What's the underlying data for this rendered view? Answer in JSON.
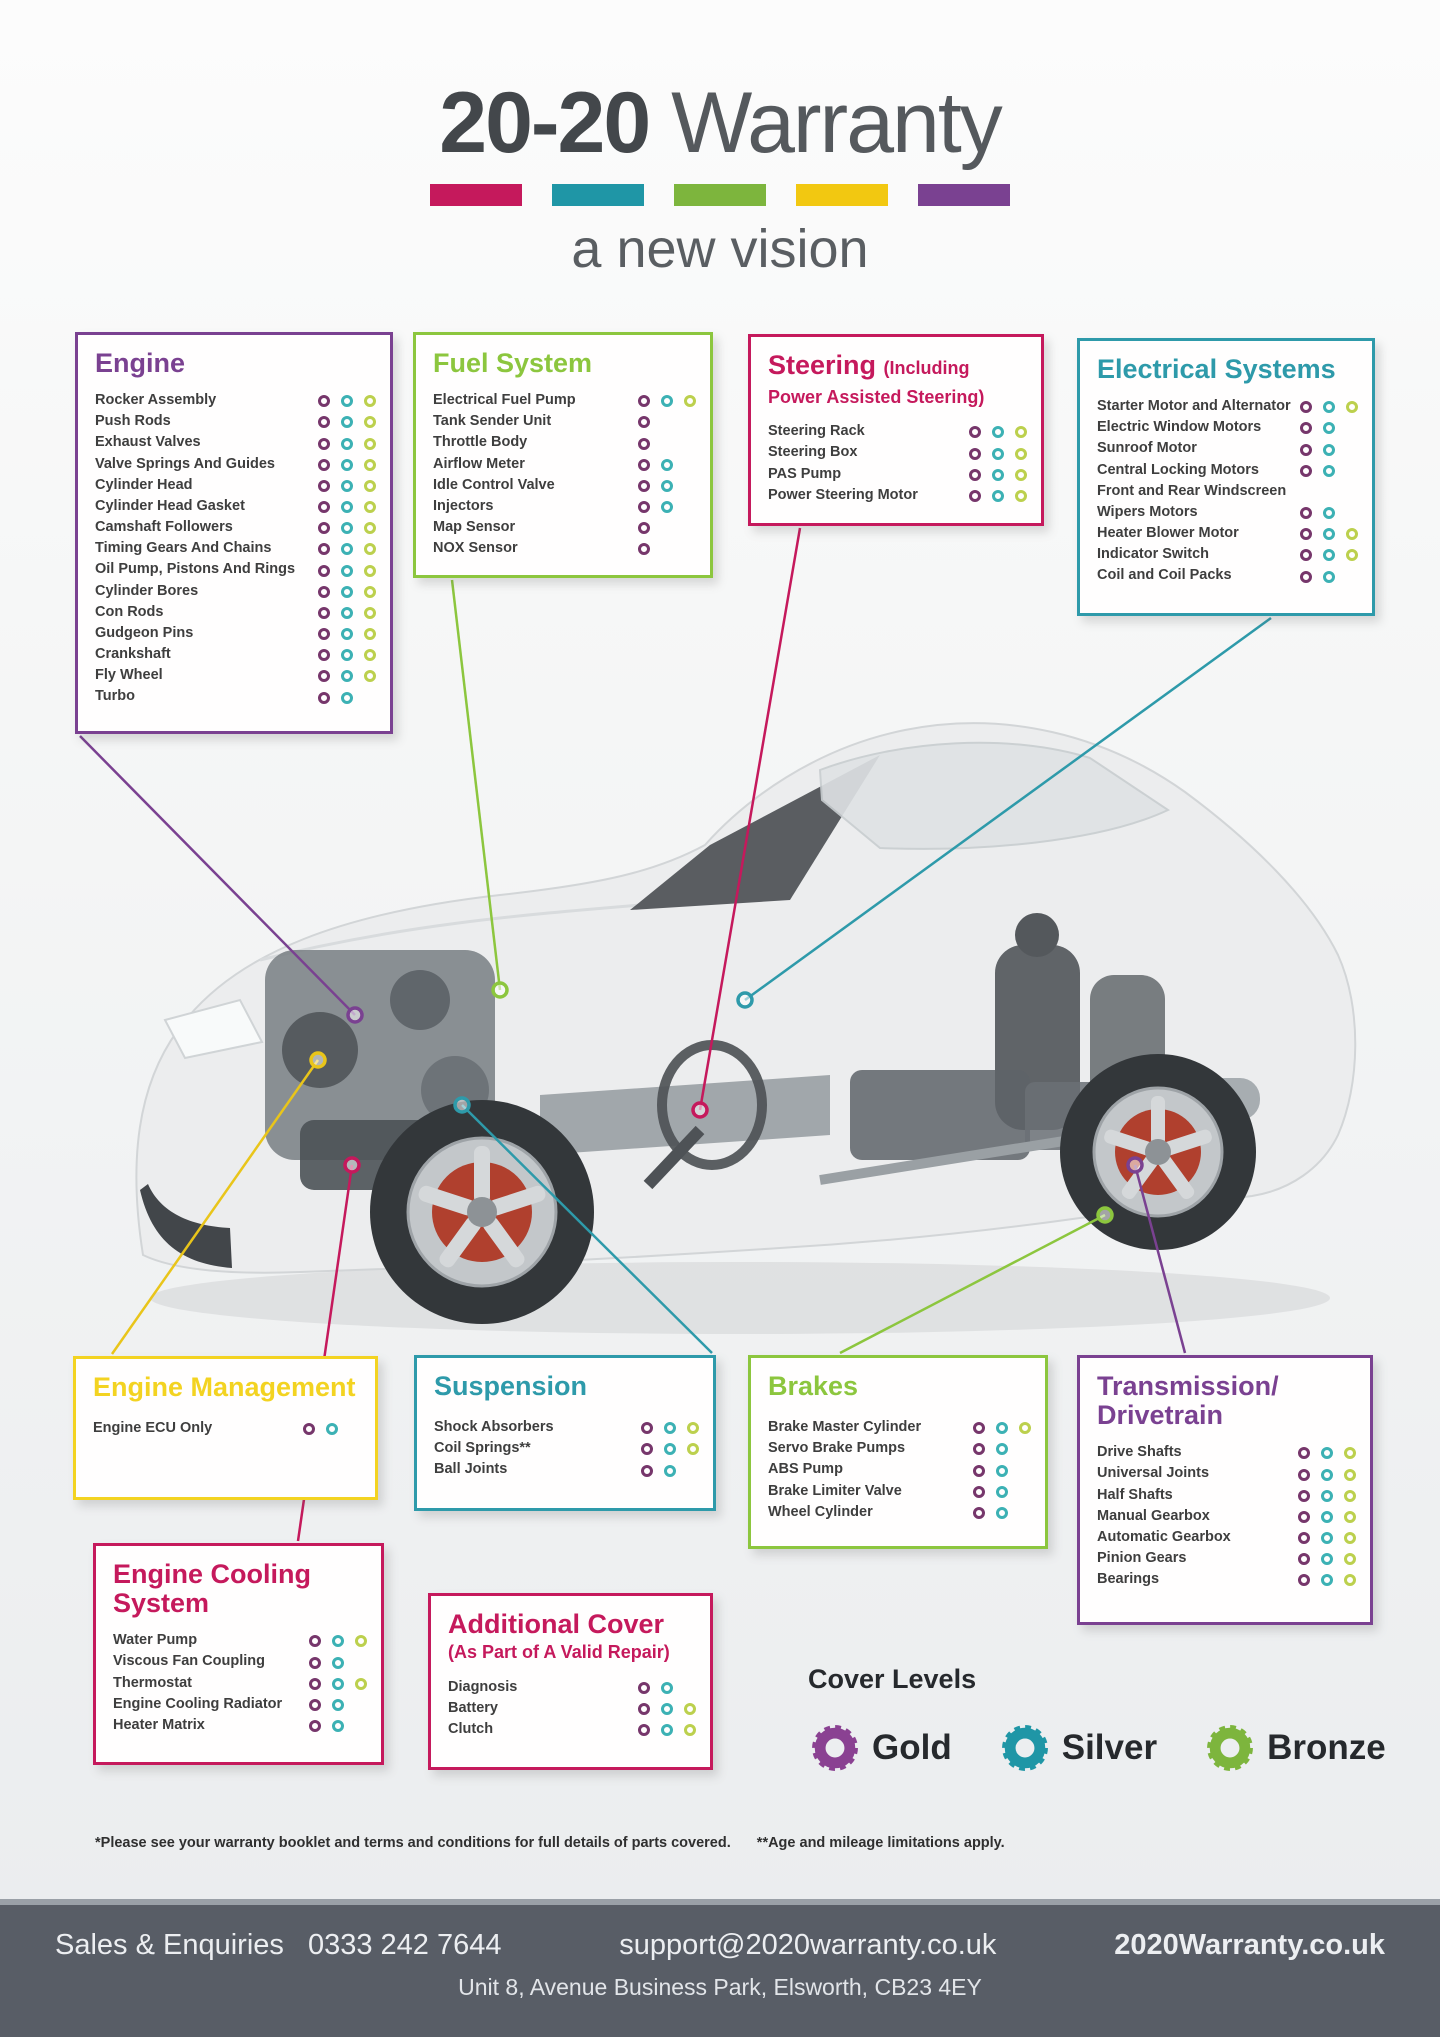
{
  "header": {
    "title_bold": "20-20",
    "title_light": " Warranty",
    "subtitle": "a new vision",
    "bar_colors": [
      "#c5195c",
      "#1f96a6",
      "#7db53d",
      "#f2c811",
      "#7a4191"
    ]
  },
  "dot_colors": {
    "gold": "#76366b",
    "silver": "#3cb1b4",
    "bronze": "#bcd04d"
  },
  "boxes": [
    {
      "id": "engine",
      "title": "Engine",
      "color": "#7a4191",
      "items": [
        {
          "label": "Rocker Assembly",
          "levels": [
            "gold",
            "silver",
            "bronze"
          ]
        },
        {
          "label": "Push Rods",
          "levels": [
            "gold",
            "silver",
            "bronze"
          ]
        },
        {
          "label": "Exhaust Valves",
          "levels": [
            "gold",
            "silver",
            "bronze"
          ]
        },
        {
          "label": "Valve Springs And Guides",
          "levels": [
            "gold",
            "silver",
            "bronze"
          ]
        },
        {
          "label": "Cylinder Head",
          "levels": [
            "gold",
            "silver",
            "bronze"
          ]
        },
        {
          "label": "Cylinder Head Gasket",
          "levels": [
            "gold",
            "silver",
            "bronze"
          ]
        },
        {
          "label": "Camshaft Followers",
          "levels": [
            "gold",
            "silver",
            "bronze"
          ]
        },
        {
          "label": "Timing Gears And Chains",
          "levels": [
            "gold",
            "silver",
            "bronze"
          ]
        },
        {
          "label": "Oil Pump, Pistons And Rings",
          "levels": [
            "gold",
            "silver",
            "bronze"
          ]
        },
        {
          "label": "Cylinder Bores",
          "levels": [
            "gold",
            "silver",
            "bronze"
          ]
        },
        {
          "label": "Con Rods",
          "levels": [
            "gold",
            "silver",
            "bronze"
          ]
        },
        {
          "label": "Gudgeon Pins",
          "levels": [
            "gold",
            "silver",
            "bronze"
          ]
        },
        {
          "label": "Crankshaft",
          "levels": [
            "gold",
            "silver",
            "bronze"
          ]
        },
        {
          "label": "Fly Wheel",
          "levels": [
            "gold",
            "silver",
            "bronze"
          ]
        },
        {
          "label": "Turbo",
          "levels": [
            "gold",
            "silver"
          ]
        }
      ]
    },
    {
      "id": "fuel-system",
      "title": "Fuel System",
      "color": "#8cc63e",
      "items": [
        {
          "label": "Electrical Fuel Pump",
          "levels": [
            "gold",
            "silver",
            "bronze"
          ]
        },
        {
          "label": "Tank Sender Unit",
          "levels": [
            "gold"
          ]
        },
        {
          "label": "Throttle Body",
          "levels": [
            "gold"
          ]
        },
        {
          "label": "Airflow Meter",
          "levels": [
            "gold",
            "silver"
          ]
        },
        {
          "label": "Idle Control Valve",
          "levels": [
            "gold",
            "silver"
          ]
        },
        {
          "label": "Injectors",
          "levels": [
            "gold",
            "silver"
          ]
        },
        {
          "label": "Map Sensor",
          "levels": [
            "gold"
          ]
        },
        {
          "label": "NOX Sensor",
          "levels": [
            "gold"
          ]
        }
      ]
    },
    {
      "id": "steering",
      "title": "Steering",
      "note1": "(Including",
      "note2": "Power Assisted Steering)",
      "color": "#c5195c",
      "items": [
        {
          "label": "Steering Rack",
          "levels": [
            "gold",
            "silver",
            "bronze"
          ]
        },
        {
          "label": "Steering Box",
          "levels": [
            "gold",
            "silver",
            "bronze"
          ]
        },
        {
          "label": "PAS Pump",
          "levels": [
            "gold",
            "silver",
            "bronze"
          ]
        },
        {
          "label": "Power Steering Motor",
          "levels": [
            "gold",
            "silver",
            "bronze"
          ]
        }
      ]
    },
    {
      "id": "electrical-systems",
      "title": "Electrical Systems",
      "color": "#2e9aaa",
      "items": [
        {
          "label": "Starter Motor and Alternator",
          "levels": [
            "gold",
            "silver",
            "bronze"
          ]
        },
        {
          "label": "Electric Window Motors",
          "levels": [
            "gold",
            "silver"
          ]
        },
        {
          "label": "Sunroof Motor",
          "levels": [
            "gold",
            "silver"
          ]
        },
        {
          "label": "Central Locking Motors",
          "levels": [
            "gold",
            "silver"
          ]
        },
        {
          "label": "Front and Rear Windscreen Wipers Motors",
          "levels": [
            "gold",
            "silver"
          ]
        },
        {
          "label": "Heater Blower Motor",
          "levels": [
            "gold",
            "silver",
            "bronze"
          ]
        },
        {
          "label": "Indicator Switch",
          "levels": [
            "gold",
            "silver",
            "bronze"
          ]
        },
        {
          "label": "Coil and Coil Packs",
          "levels": [
            "gold",
            "silver"
          ]
        }
      ]
    },
    {
      "id": "engine-management",
      "title": "Engine Management",
      "color": "#f3d321",
      "items": [
        {
          "label": "Engine ECU Only",
          "levels": [
            "gold",
            "silver"
          ]
        }
      ]
    },
    {
      "id": "suspension",
      "title": "Suspension",
      "color": "#2e9aaa",
      "items": [
        {
          "label": "Shock Absorbers",
          "levels": [
            "gold",
            "silver",
            "bronze"
          ]
        },
        {
          "label": "Coil Springs**",
          "levels": [
            "gold",
            "silver",
            "bronze"
          ]
        },
        {
          "label": "Ball Joints",
          "levels": [
            "gold",
            "silver"
          ]
        }
      ]
    },
    {
      "id": "brakes",
      "title": "Brakes",
      "color": "#8cc63e",
      "items": [
        {
          "label": "Brake Master Cylinder",
          "levels": [
            "gold",
            "silver",
            "bronze"
          ]
        },
        {
          "label": "Servo Brake Pumps",
          "levels": [
            "gold",
            "silver"
          ]
        },
        {
          "label": "ABS Pump",
          "levels": [
            "gold",
            "silver"
          ]
        },
        {
          "label": "Brake Limiter Valve",
          "levels": [
            "gold",
            "silver"
          ]
        },
        {
          "label": "Wheel Cylinder",
          "levels": [
            "gold",
            "silver"
          ]
        }
      ]
    },
    {
      "id": "transmission-drivetrain",
      "title": "Transmission/ Drivetrain",
      "color": "#7a4191",
      "items": [
        {
          "label": "Drive Shafts",
          "levels": [
            "gold",
            "silver",
            "bronze"
          ]
        },
        {
          "label": "Universal Joints",
          "levels": [
            "gold",
            "silver",
            "bronze"
          ]
        },
        {
          "label": "Half Shafts",
          "levels": [
            "gold",
            "silver",
            "bronze"
          ]
        },
        {
          "label": "Manual Gearbox",
          "levels": [
            "gold",
            "silver",
            "bronze"
          ]
        },
        {
          "label": "Automatic Gearbox",
          "levels": [
            "gold",
            "silver",
            "bronze"
          ]
        },
        {
          "label": "Pinion Gears",
          "levels": [
            "gold",
            "silver",
            "bronze"
          ]
        },
        {
          "label": "Bearings",
          "levels": [
            "gold",
            "silver",
            "bronze"
          ]
        }
      ]
    },
    {
      "id": "engine-cooling-system",
      "title": "Engine Cooling System",
      "color": "#c5195c",
      "items": [
        {
          "label": "Water Pump",
          "levels": [
            "gold",
            "silver",
            "bronze"
          ]
        },
        {
          "label": "Viscous Fan Coupling",
          "levels": [
            "gold",
            "silver"
          ]
        },
        {
          "label": "Thermostat",
          "levels": [
            "gold",
            "silver",
            "bronze"
          ]
        },
        {
          "label": "Engine Cooling Radiator",
          "levels": [
            "gold",
            "silver"
          ]
        },
        {
          "label": "Heater Matrix",
          "levels": [
            "gold",
            "silver"
          ]
        }
      ]
    },
    {
      "id": "additional-cover",
      "title": "Additional Cover",
      "subtitle": "(As Part of A Valid Repair)",
      "color": "#c5195c",
      "items": [
        {
          "label": "Diagnosis",
          "levels": [
            "gold",
            "silver"
          ]
        },
        {
          "label": "Battery",
          "levels": [
            "gold",
            "silver",
            "bronze"
          ]
        },
        {
          "label": "Clutch",
          "levels": [
            "gold",
            "silver",
            "bronze"
          ]
        }
      ]
    }
  ],
  "cover_levels": {
    "heading": "Cover Levels",
    "levels": [
      {
        "name": "Gold",
        "color": "#8a4192"
      },
      {
        "name": "Silver",
        "color": "#1f96a6"
      },
      {
        "name": "Bronze",
        "color": "#7db53d"
      }
    ]
  },
  "disclaimer": {
    "note1": "*Please see your warranty booklet and terms and conditions for full details of parts covered.",
    "note2": "**Age and mileage limitations apply."
  },
  "footer": {
    "sales_label": "Sales & Enquiries",
    "phone": "0333 242 7644",
    "email": "support@2020warranty.co.uk",
    "website": "2020Warranty.co.uk",
    "address": "Unit 8, Avenue Business Park, Elsworth, CB23 4EY"
  }
}
